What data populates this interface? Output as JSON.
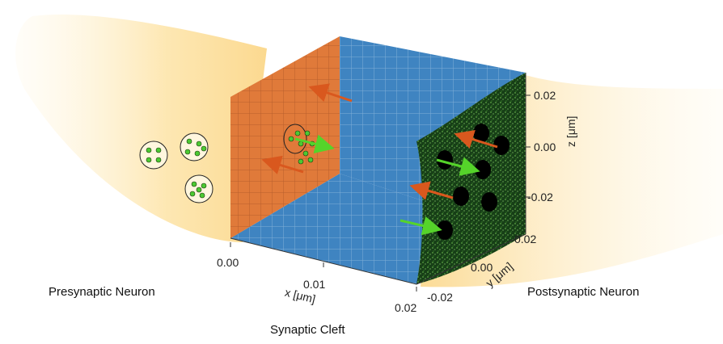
{
  "labels": {
    "presynaptic": "Presynaptic Neuron",
    "postsynaptic": "Postsynaptic Neuron",
    "cleft": "Synaptic Cleft"
  },
  "axes": {
    "x": {
      "label": "x [μm]",
      "ticks": [
        "0.00",
        "0.01",
        "0.02"
      ]
    },
    "y": {
      "label": "y [μm]",
      "ticks": [
        "-0.02",
        "0.00",
        "0.02"
      ]
    },
    "z": {
      "label": "z [μm]",
      "ticks": [
        "0.02",
        "0.00",
        "-0.02"
      ]
    }
  },
  "colors": {
    "neuron": "#fde7b0",
    "pre_wall": "#e07a3a",
    "back_wall": "#3f84c1",
    "floor": "#3f84c1",
    "post_wall": "#1e4d1e",
    "vesicle_fill": "#4cc933",
    "release_arrow": "#55d42a",
    "reuptake_arrow": "#d9581e",
    "receptor": "#000000"
  }
}
